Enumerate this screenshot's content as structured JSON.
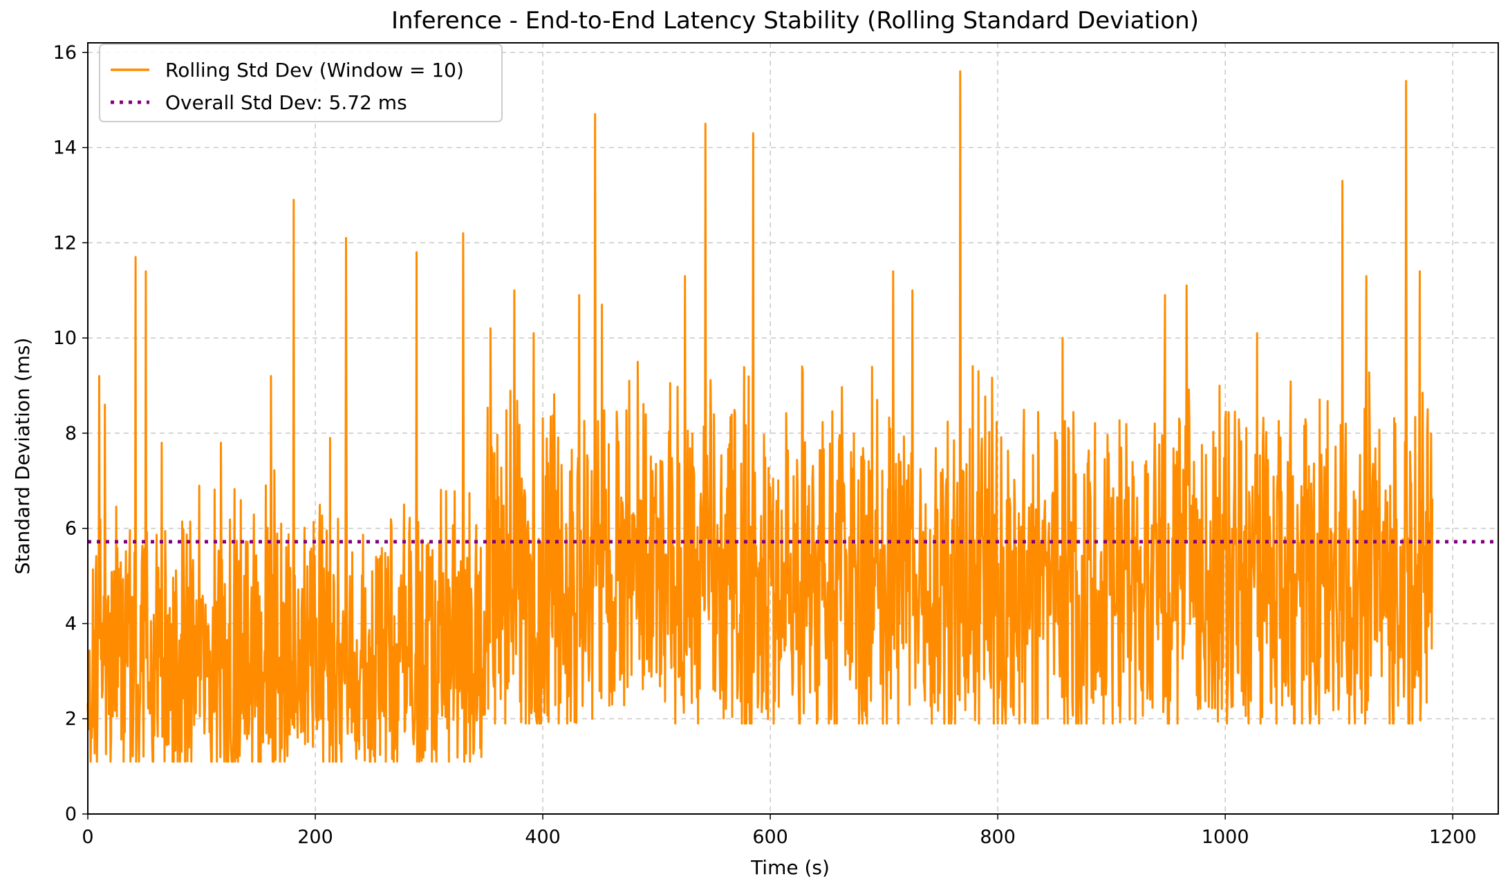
{
  "chart_data": {
    "type": "line",
    "title": "Inference - End-to-End Latency Stability (Rolling Standard Deviation)",
    "xlabel": "Time (s)",
    "ylabel": "Standard Deviation (ms)",
    "xlim": [
      0,
      1240
    ],
    "ylim": [
      0,
      16.2
    ],
    "x_ticks": [
      0,
      200,
      400,
      600,
      800,
      1000,
      1200
    ],
    "y_ticks": [
      0,
      2,
      4,
      6,
      8,
      10,
      12,
      14,
      16
    ],
    "grid": true,
    "grid_style": "dashed",
    "legend_position": "top-left",
    "series": [
      {
        "name": "Rolling Std Dev (Window = 10)",
        "color": "#ff8c00",
        "style": "solid",
        "x_range": [
          0,
          1182
        ],
        "segments": [
          {
            "x0": 0,
            "x1": 350,
            "mean": 3.2,
            "low": 1.1,
            "high": 6.5
          },
          {
            "x0": 350,
            "x1": 1182,
            "mean": 4.9,
            "low": 1.9,
            "high": 8.5
          }
        ],
        "spikes": [
          {
            "x": 10,
            "y": 9.2
          },
          {
            "x": 15,
            "y": 8.6
          },
          {
            "x": 42,
            "y": 11.7
          },
          {
            "x": 51,
            "y": 11.4
          },
          {
            "x": 65,
            "y": 7.8
          },
          {
            "x": 117,
            "y": 7.8
          },
          {
            "x": 161,
            "y": 9.2
          },
          {
            "x": 181,
            "y": 12.9
          },
          {
            "x": 213,
            "y": 7.9
          },
          {
            "x": 227,
            "y": 12.1
          },
          {
            "x": 289,
            "y": 11.8
          },
          {
            "x": 330,
            "y": 12.2
          },
          {
            "x": 354,
            "y": 10.2
          },
          {
            "x": 375,
            "y": 11.0
          },
          {
            "x": 392,
            "y": 10.1
          },
          {
            "x": 432,
            "y": 10.9
          },
          {
            "x": 446,
            "y": 14.7
          },
          {
            "x": 452,
            "y": 10.7
          },
          {
            "x": 476,
            "y": 9.1
          },
          {
            "x": 525,
            "y": 11.3
          },
          {
            "x": 543,
            "y": 14.5
          },
          {
            "x": 585,
            "y": 14.3
          },
          {
            "x": 628,
            "y": 9.4
          },
          {
            "x": 694,
            "y": 8.7
          },
          {
            "x": 708,
            "y": 11.4
          },
          {
            "x": 725,
            "y": 11.0
          },
          {
            "x": 767,
            "y": 15.6
          },
          {
            "x": 783,
            "y": 9.3
          },
          {
            "x": 857,
            "y": 10.0
          },
          {
            "x": 947,
            "y": 10.9
          },
          {
            "x": 966,
            "y": 11.1
          },
          {
            "x": 1028,
            "y": 10.1
          },
          {
            "x": 1103,
            "y": 13.3
          },
          {
            "x": 1124,
            "y": 11.3
          },
          {
            "x": 1159,
            "y": 15.4
          },
          {
            "x": 1171,
            "y": 11.4
          },
          {
            "x": 1178,
            "y": 8.5
          }
        ]
      },
      {
        "name": "Overall Std Dev: 5.72 ms",
        "color": "#800080",
        "style": "dotted",
        "value": 5.72
      }
    ]
  }
}
